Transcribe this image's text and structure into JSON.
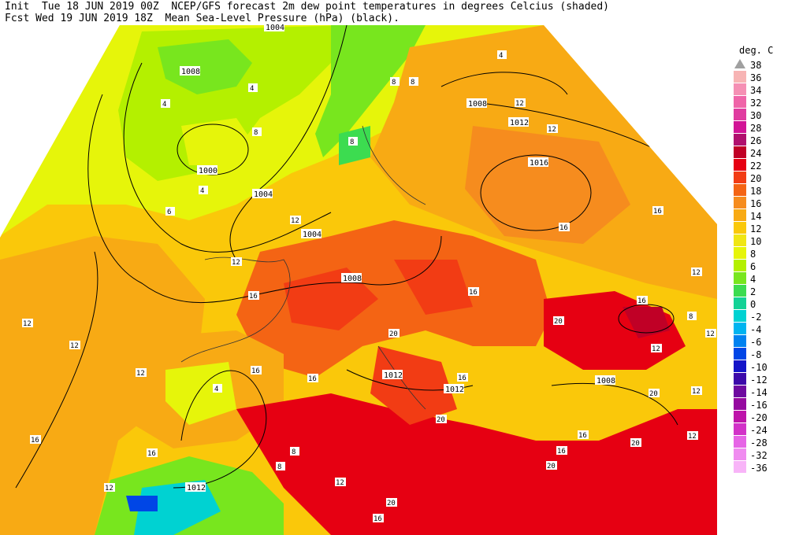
{
  "header": {
    "line1": "Init  Tue 18 JUN 2019 00Z  NCEP/GFS forecast 2m dew point temperatures in degrees Celcius (shaded)",
    "line2": "Fcst Wed 19 JUN 2019 18Z  Mean Sea-Level Pressure (hPa) (black)."
  },
  "legend": {
    "title": "deg. C",
    "entries": [
      {
        "label": "38",
        "color": "#a0a0a0"
      },
      {
        "label": "36",
        "color": "#f7b4b4"
      },
      {
        "label": "34",
        "color": "#f590b4"
      },
      {
        "label": "32",
        "color": "#ef64a8"
      },
      {
        "label": "30",
        "color": "#e03ca0"
      },
      {
        "label": "28",
        "color": "#d21496"
      },
      {
        "label": "26",
        "color": "#b0106e"
      },
      {
        "label": "24",
        "color": "#c00026"
      },
      {
        "label": "22",
        "color": "#e60012"
      },
      {
        "label": "20",
        "color": "#f23c14"
      },
      {
        "label": "18",
        "color": "#f46414"
      },
      {
        "label": "16",
        "color": "#f68c1e"
      },
      {
        "label": "14",
        "color": "#f8aa14"
      },
      {
        "label": "12",
        "color": "#fac80a"
      },
      {
        "label": "10",
        "color": "#f0e614"
      },
      {
        "label": "8",
        "color": "#e6f50a"
      },
      {
        "label": "6",
        "color": "#b4f000"
      },
      {
        "label": "4",
        "color": "#78e61e"
      },
      {
        "label": "2",
        "color": "#3cdc50"
      },
      {
        "label": "0",
        "color": "#14d296"
      },
      {
        "label": "-2",
        "color": "#00d2d2"
      },
      {
        "label": "-4",
        "color": "#00b4f0"
      },
      {
        "label": "-6",
        "color": "#0082f0"
      },
      {
        "label": "-8",
        "color": "#0046e6"
      },
      {
        "label": "-10",
        "color": "#1414c8"
      },
      {
        "label": "-12",
        "color": "#3c0aaa"
      },
      {
        "label": "-14",
        "color": "#6e0aa0"
      },
      {
        "label": "-16",
        "color": "#960aa0"
      },
      {
        "label": "-20",
        "color": "#be14aa"
      },
      {
        "label": "-24",
        "color": "#d232c8"
      },
      {
        "label": "-28",
        "color": "#e664e6"
      },
      {
        "label": "-32",
        "color": "#f08cf0"
      },
      {
        "label": "-36",
        "color": "#f8b4f8"
      }
    ]
  },
  "isobar_labels": [
    "1004",
    "1008",
    "1000",
    "1004",
    "1004",
    "1008",
    "1012",
    "1016",
    "1012",
    "1012",
    "1008",
    "1008",
    "1012"
  ],
  "dewpoint_labels": [
    "4",
    "4",
    "8",
    "8",
    "4",
    "6",
    "8",
    "8",
    "4",
    "12",
    "12",
    "12",
    "12",
    "16",
    "16",
    "16",
    "12",
    "12",
    "12",
    "16",
    "12",
    "16",
    "16",
    "16",
    "16",
    "12",
    "16",
    "20",
    "20",
    "20",
    "20",
    "4",
    "16",
    "12",
    "8",
    "8",
    "12",
    "12",
    "12",
    "16",
    "20",
    "20",
    "8",
    "12",
    "20",
    "16",
    "16"
  ]
}
